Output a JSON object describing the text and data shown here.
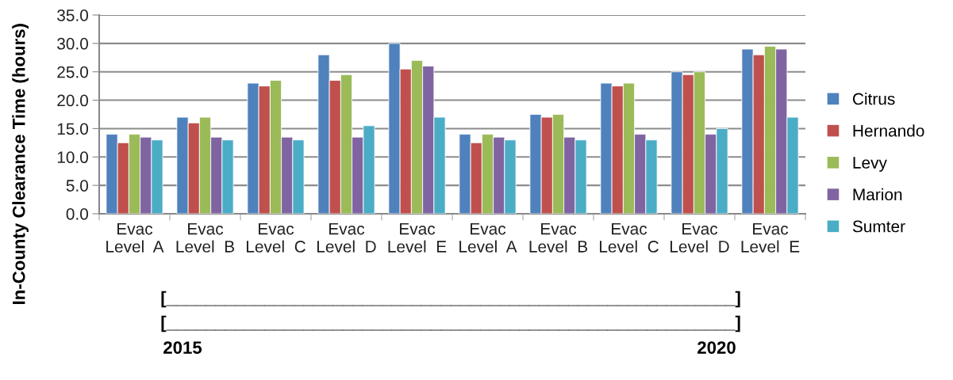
{
  "chart_data": {
    "type": "bar",
    "ylabel": "In-County Clearance Time (hours)",
    "categories": [
      "Evac\nLevel  A",
      "Evac\nLevel  B",
      "Evac\nLevel  C",
      "Evac\nLevel  D",
      "Evac\nLevel  E",
      "Evac\nLevel  A",
      "Evac\nLevel  B",
      "Evac\nLevel  C",
      "Evac\nLevel  D",
      "Evac\nLevel  E"
    ],
    "series": [
      {
        "name": "Citrus",
        "color": "#4f81bd",
        "values": [
          14,
          17,
          23,
          28,
          30,
          14,
          17.5,
          23,
          25,
          29
        ]
      },
      {
        "name": "Hernando",
        "color": "#c0504d",
        "values": [
          12.5,
          16,
          22.5,
          23.5,
          25.5,
          12.5,
          17,
          22.5,
          24.5,
          28
        ]
      },
      {
        "name": "Levy",
        "color": "#9bbb59",
        "values": [
          14,
          17,
          23.5,
          24.5,
          27,
          14,
          17.5,
          23,
          25,
          29.5
        ]
      },
      {
        "name": "Marion",
        "color": "#8064a2",
        "values": [
          13.5,
          13.5,
          13.5,
          13.5,
          26,
          13.5,
          13.5,
          14,
          14,
          29
        ]
      },
      {
        "name": "Sumter",
        "color": "#4bacc6",
        "values": [
          13,
          13,
          13,
          15.5,
          17,
          13,
          13,
          13,
          15,
          17
        ]
      }
    ],
    "ylim": [
      0,
      35
    ],
    "yticks": [
      {
        "value": 0,
        "label": "0.0"
      },
      {
        "value": 5,
        "label": "5.0"
      },
      {
        "value": 10,
        "label": "10.0"
      },
      {
        "value": 15,
        "label": "15.0"
      },
      {
        "value": 20,
        "label": "20.0"
      },
      {
        "value": 25,
        "label": "25.0"
      },
      {
        "value": 30,
        "label": "30.0"
      },
      {
        "value": 35,
        "label": "35.0"
      }
    ],
    "grid": "y",
    "legend": "right",
    "annotations": [
      "[__________________________________________________________]",
      "[__________________________________________________________]",
      "2015",
      "2020"
    ]
  }
}
